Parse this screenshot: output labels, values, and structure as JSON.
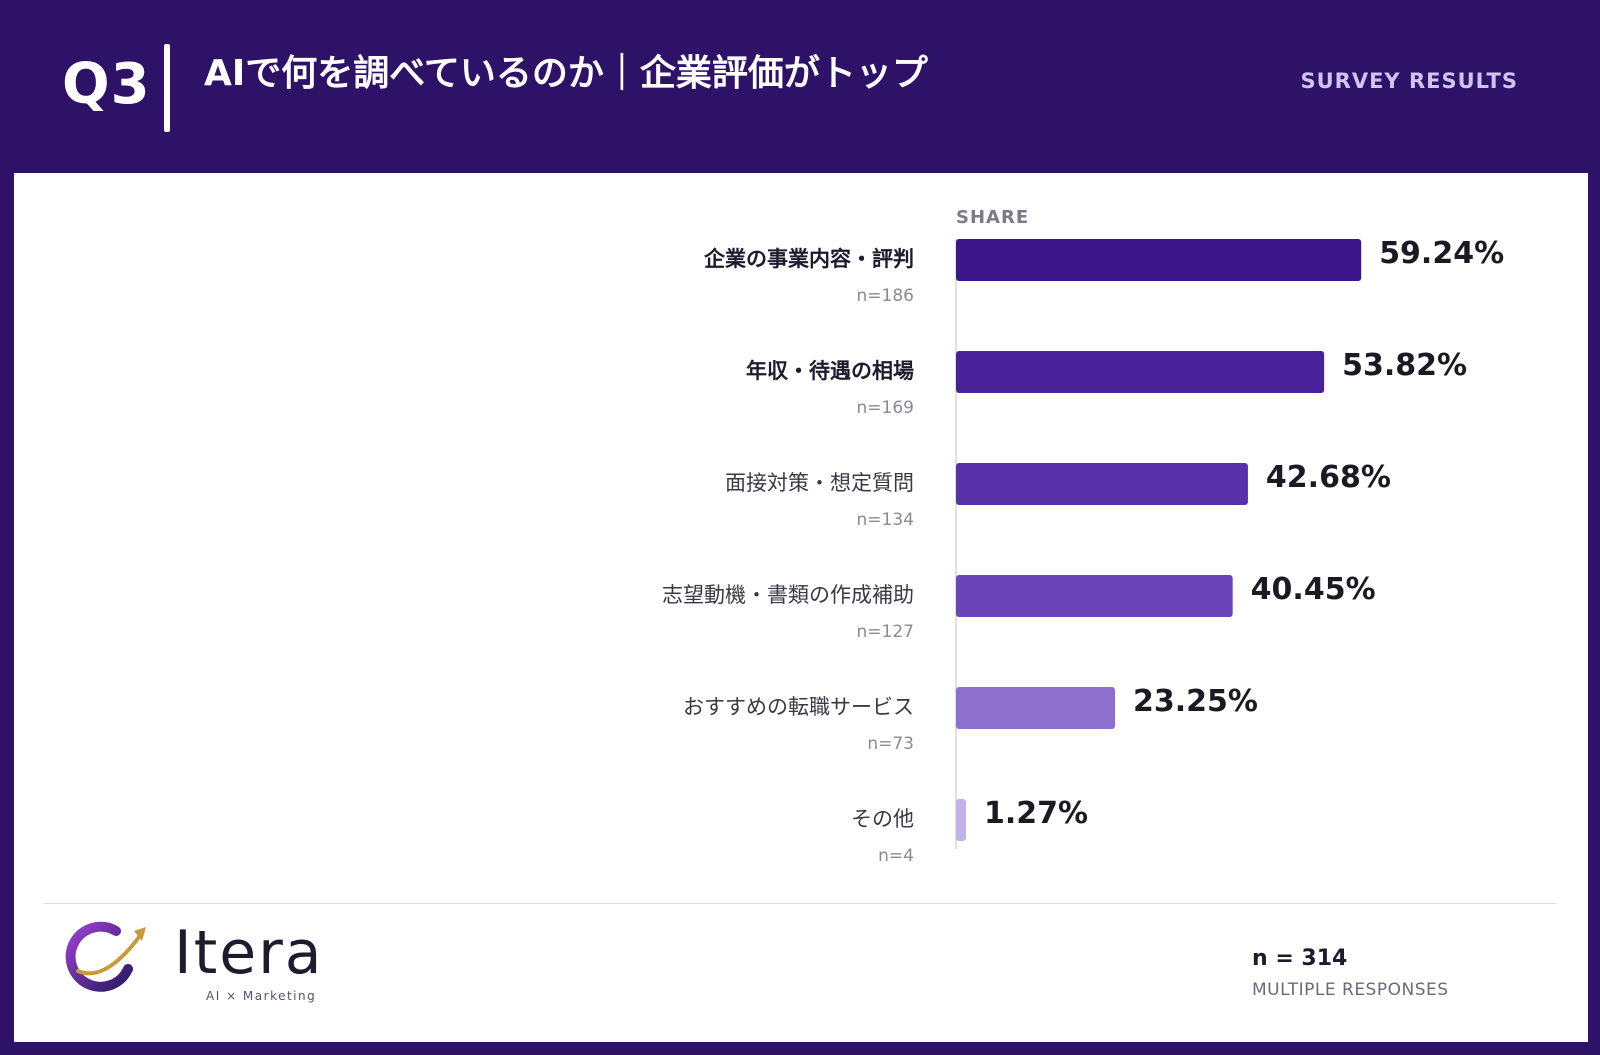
{
  "header": {
    "question": "Q3",
    "title": "AIで何を調べているのか｜企業評価がトップ",
    "tag": "SURVEY RESULTS"
  },
  "logo": {
    "name": "Itera",
    "tagline": "AI × Marketing"
  },
  "footer": {
    "n_total": "n = 314",
    "note": "MULTIPLE RESPONSES"
  },
  "colors": {
    "header_bg": "#2e1268",
    "bars": [
      "#3b1589",
      "#48209a",
      "#5830aa",
      "#6a44b8",
      "#8d6fcc",
      "#c1b2e8"
    ]
  },
  "chart_data": {
    "type": "bar",
    "orientation": "horizontal",
    "value_header": "SHARE",
    "categories": [
      "企業の事業内容・評判",
      "年収・待遇の相場",
      "面接対策・想定質問",
      "志望動機・書類の作成補助",
      "おすすめの転職サービス",
      "その他"
    ],
    "category_bold": [
      true,
      true,
      false,
      false,
      false,
      false
    ],
    "counts": [
      "n=186",
      "n=169",
      "n=134",
      "n=127",
      "n=73",
      "n=4"
    ],
    "values": [
      59.24,
      53.82,
      42.68,
      40.45,
      23.25,
      1.27
    ],
    "value_labels": [
      "59.24%",
      "53.82%",
      "42.68%",
      "40.45%",
      "23.25%",
      "1.27%"
    ],
    "xlim": [
      0,
      100
    ],
    "grid": false
  }
}
